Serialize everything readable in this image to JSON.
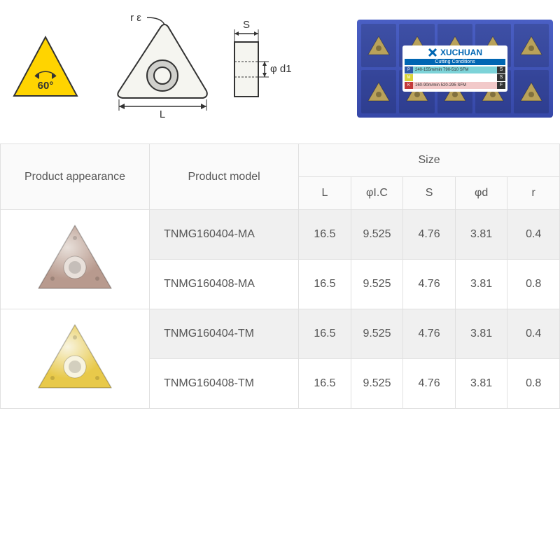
{
  "angle": {
    "label": "60°",
    "fill": "#ffd400",
    "stroke": "#333333",
    "text_color": "#333333"
  },
  "diagram": {
    "re_label": "r ε",
    "L_label": "L",
    "S_label": "S",
    "d1_label": "φ d1",
    "stroke": "#333333",
    "fill": "#f5f5f0",
    "hole_fill": "#d0d0cc"
  },
  "product_box": {
    "brand": "XUCHUAN",
    "subtitle": "Cutting Conditions",
    "box_bg_top": "#4a5fc4",
    "box_bg_bottom": "#3648a8",
    "insert_color": "#b9a25a",
    "rows": [
      {
        "k": "P",
        "k_bg": "#2e5aa8",
        "bar_bg": "#7dd3d8",
        "text": "240-155m/min 790-510 SFM",
        "s": "S"
      },
      {
        "k": "M",
        "k_bg": "#d8d33a",
        "bar_bg": "#ffffff",
        "text": "",
        "s": "S"
      },
      {
        "k": "K",
        "k_bg": "#c33a3a",
        "bar_bg": "#f2c9c9",
        "text": "160-90m/min 520-295 SFM",
        "s": "F"
      }
    ]
  },
  "table": {
    "headers": {
      "appearance": "Product appearance",
      "model": "Product model",
      "size": "Size",
      "cols": [
        "L",
        "φI.C",
        "S",
        "φd",
        "r"
      ]
    },
    "groups": [
      {
        "insert_color": "#b89a8e",
        "insert_hole": "#e8e0da",
        "rows": [
          {
            "model": "TNMG160404-MA",
            "L": "16.5",
            "IC": "9.525",
            "S": "4.76",
            "d": "3.81",
            "r": "0.4",
            "alt": true
          },
          {
            "model": "TNMG160408-MA",
            "L": "16.5",
            "IC": "9.525",
            "S": "4.76",
            "d": "3.81",
            "r": "0.8",
            "alt": false
          }
        ]
      },
      {
        "insert_color": "#e8c94a",
        "insert_hole": "#f8f4e0",
        "rows": [
          {
            "model": "TNMG160404-TM",
            "L": "16.5",
            "IC": "9.525",
            "S": "4.76",
            "d": "3.81",
            "r": "0.4",
            "alt": true
          },
          {
            "model": "TNMG160408-TM",
            "L": "16.5",
            "IC": "9.525",
            "S": "4.76",
            "d": "3.81",
            "r": "0.8",
            "alt": false
          }
        ]
      }
    ]
  },
  "colors": {
    "border": "#e0e0e0",
    "row_alt": "#f0f0f0",
    "text": "#555555"
  }
}
